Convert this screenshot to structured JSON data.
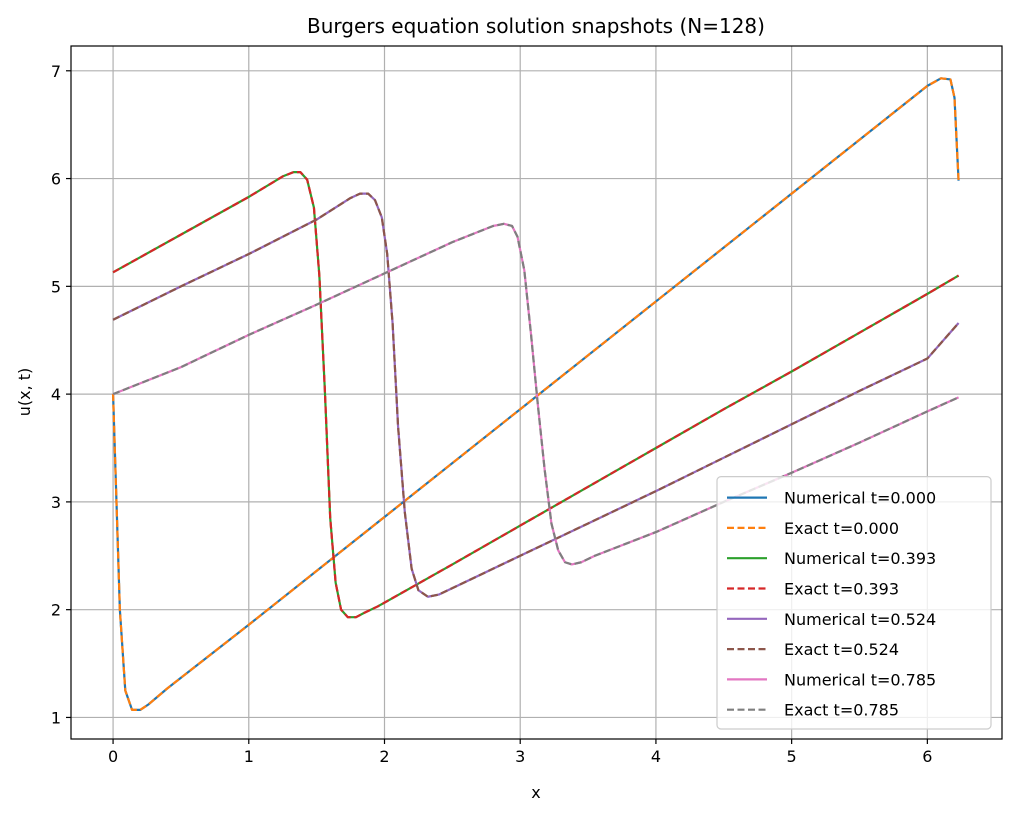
{
  "chart_data": {
    "type": "line",
    "title": "Burgers equation solution snapshots (N=128)",
    "xlabel": "x",
    "ylabel": "u(x, t)",
    "xlim": [
      -0.31,
      6.55
    ],
    "ylim": [
      0.8,
      7.23
    ],
    "xticks": [
      0,
      1,
      2,
      3,
      4,
      5,
      6
    ],
    "yticks": [
      1,
      2,
      3,
      4,
      5,
      6,
      7
    ],
    "grid": true,
    "legend_position": "lower-right",
    "colors": {
      "tab_blue": "#1f77b4",
      "tab_orange": "#ff7f0e",
      "tab_green": "#2ca02c",
      "tab_red": "#d62728",
      "tab_purple": "#9467bd",
      "tab_brown": "#8c564b",
      "tab_pink": "#e377c2",
      "tab_gray": "#7f7f7f"
    },
    "series": [
      {
        "name": "Numerical t=0.000",
        "color": "#1f77b4",
        "dash": false,
        "x": [
          0,
          0.02,
          0.05,
          0.09,
          0.14,
          0.2,
          0.26,
          0.4,
          1.0,
          2.0,
          3.0,
          4.0,
          5.0,
          6.0,
          6.1,
          6.17,
          6.2,
          6.23
        ],
        "y": [
          4.0,
          3.2,
          2.0,
          1.25,
          1.07,
          1.07,
          1.12,
          1.27,
          1.86,
          2.86,
          3.86,
          4.86,
          5.86,
          6.86,
          6.93,
          6.92,
          6.75,
          5.98
        ]
      },
      {
        "name": "Exact t=0.000",
        "color": "#ff7f0e",
        "dash": true,
        "x": [
          0,
          0.02,
          0.05,
          0.09,
          0.14,
          0.2,
          0.26,
          0.4,
          1.0,
          2.0,
          3.0,
          4.0,
          5.0,
          6.0,
          6.1,
          6.17,
          6.2,
          6.23
        ],
        "y": [
          4.0,
          3.2,
          2.0,
          1.25,
          1.07,
          1.07,
          1.12,
          1.27,
          1.86,
          2.86,
          3.86,
          4.86,
          5.86,
          6.86,
          6.93,
          6.92,
          6.75,
          5.98
        ]
      },
      {
        "name": "Numerical t=0.393",
        "color": "#2ca02c",
        "dash": false,
        "x": [
          0,
          0.5,
          1.0,
          1.25,
          1.33,
          1.38,
          1.43,
          1.48,
          1.52,
          1.56,
          1.6,
          1.64,
          1.68,
          1.73,
          1.79,
          1.85,
          1.95,
          2.5,
          3.0,
          3.5,
          4.0,
          4.5,
          5.0,
          5.5,
          6.0,
          6.23
        ],
        "y": [
          5.13,
          5.48,
          5.83,
          6.02,
          6.06,
          6.06,
          5.99,
          5.73,
          5.1,
          4.05,
          2.85,
          2.25,
          2.0,
          1.93,
          1.93,
          1.97,
          2.03,
          2.42,
          2.78,
          3.14,
          3.5,
          3.86,
          4.21,
          4.57,
          4.93,
          5.1
        ]
      },
      {
        "name": "Exact t=0.393",
        "color": "#d62728",
        "dash": true,
        "x": [
          0,
          0.5,
          1.0,
          1.25,
          1.33,
          1.38,
          1.43,
          1.48,
          1.52,
          1.56,
          1.6,
          1.64,
          1.68,
          1.73,
          1.79,
          1.85,
          1.95,
          2.5,
          3.0,
          3.5,
          4.0,
          4.5,
          5.0,
          5.5,
          6.0,
          6.23
        ],
        "y": [
          5.13,
          5.48,
          5.83,
          6.02,
          6.06,
          6.06,
          5.99,
          5.73,
          5.1,
          4.05,
          2.85,
          2.25,
          2.0,
          1.93,
          1.93,
          1.97,
          2.03,
          2.42,
          2.78,
          3.14,
          3.5,
          3.86,
          4.21,
          4.57,
          4.93,
          5.1
        ]
      },
      {
        "name": "Numerical t=0.524",
        "color": "#9467bd",
        "dash": false,
        "x": [
          0,
          0.5,
          1.0,
          1.5,
          1.75,
          1.82,
          1.88,
          1.93,
          1.98,
          2.02,
          2.06,
          2.1,
          2.15,
          2.2,
          2.25,
          2.32,
          2.4,
          3.0,
          3.5,
          4.0,
          4.5,
          5.0,
          5.5,
          6.0,
          6.23
        ],
        "y": [
          4.69,
          5.0,
          5.3,
          5.62,
          5.82,
          5.86,
          5.86,
          5.8,
          5.64,
          5.3,
          4.65,
          3.7,
          2.9,
          2.38,
          2.18,
          2.12,
          2.14,
          2.5,
          2.8,
          3.1,
          3.41,
          3.72,
          4.03,
          4.33,
          4.66
        ]
      },
      {
        "name": "Exact t=0.524",
        "color": "#8c564b",
        "dash": true,
        "x": [
          0,
          0.5,
          1.0,
          1.5,
          1.75,
          1.82,
          1.88,
          1.93,
          1.98,
          2.02,
          2.06,
          2.1,
          2.15,
          2.2,
          2.25,
          2.32,
          2.4,
          3.0,
          3.5,
          4.0,
          4.5,
          5.0,
          5.5,
          6.0,
          6.23
        ],
        "y": [
          4.69,
          5.0,
          5.3,
          5.62,
          5.82,
          5.86,
          5.86,
          5.8,
          5.64,
          5.3,
          4.65,
          3.7,
          2.9,
          2.38,
          2.18,
          2.12,
          2.14,
          2.5,
          2.8,
          3.1,
          3.41,
          3.72,
          4.03,
          4.33,
          4.66
        ]
      },
      {
        "name": "Numerical t=0.785",
        "color": "#e377c2",
        "dash": false,
        "x": [
          0,
          0.5,
          1.0,
          1.5,
          2.0,
          2.5,
          2.8,
          2.88,
          2.94,
          2.98,
          3.03,
          3.08,
          3.13,
          3.18,
          3.23,
          3.28,
          3.33,
          3.38,
          3.45,
          3.55,
          4.0,
          4.5,
          5.0,
          5.5,
          6.0,
          6.23
        ],
        "y": [
          4.0,
          4.25,
          4.55,
          4.83,
          5.12,
          5.41,
          5.56,
          5.58,
          5.56,
          5.46,
          5.15,
          4.55,
          3.9,
          3.3,
          2.8,
          2.55,
          2.44,
          2.42,
          2.44,
          2.5,
          2.72,
          3.0,
          3.27,
          3.55,
          3.84,
          3.97
        ]
      },
      {
        "name": "Exact t=0.785",
        "color": "#7f7f7f",
        "dash": true,
        "x": [
          0,
          0.5,
          1.0,
          1.5,
          2.0,
          2.5,
          2.8,
          2.88,
          2.94,
          2.98,
          3.03,
          3.08,
          3.13,
          3.18,
          3.23,
          3.28,
          3.33,
          3.38,
          3.45,
          3.55,
          4.0,
          4.5,
          5.0,
          5.5,
          6.0,
          6.23
        ],
        "y": [
          4.0,
          4.25,
          4.55,
          4.83,
          5.12,
          5.41,
          5.56,
          5.58,
          5.56,
          5.46,
          5.15,
          4.55,
          3.9,
          3.3,
          2.8,
          2.55,
          2.44,
          2.42,
          2.44,
          2.5,
          2.72,
          3.0,
          3.27,
          3.55,
          3.84,
          3.97
        ]
      }
    ]
  }
}
